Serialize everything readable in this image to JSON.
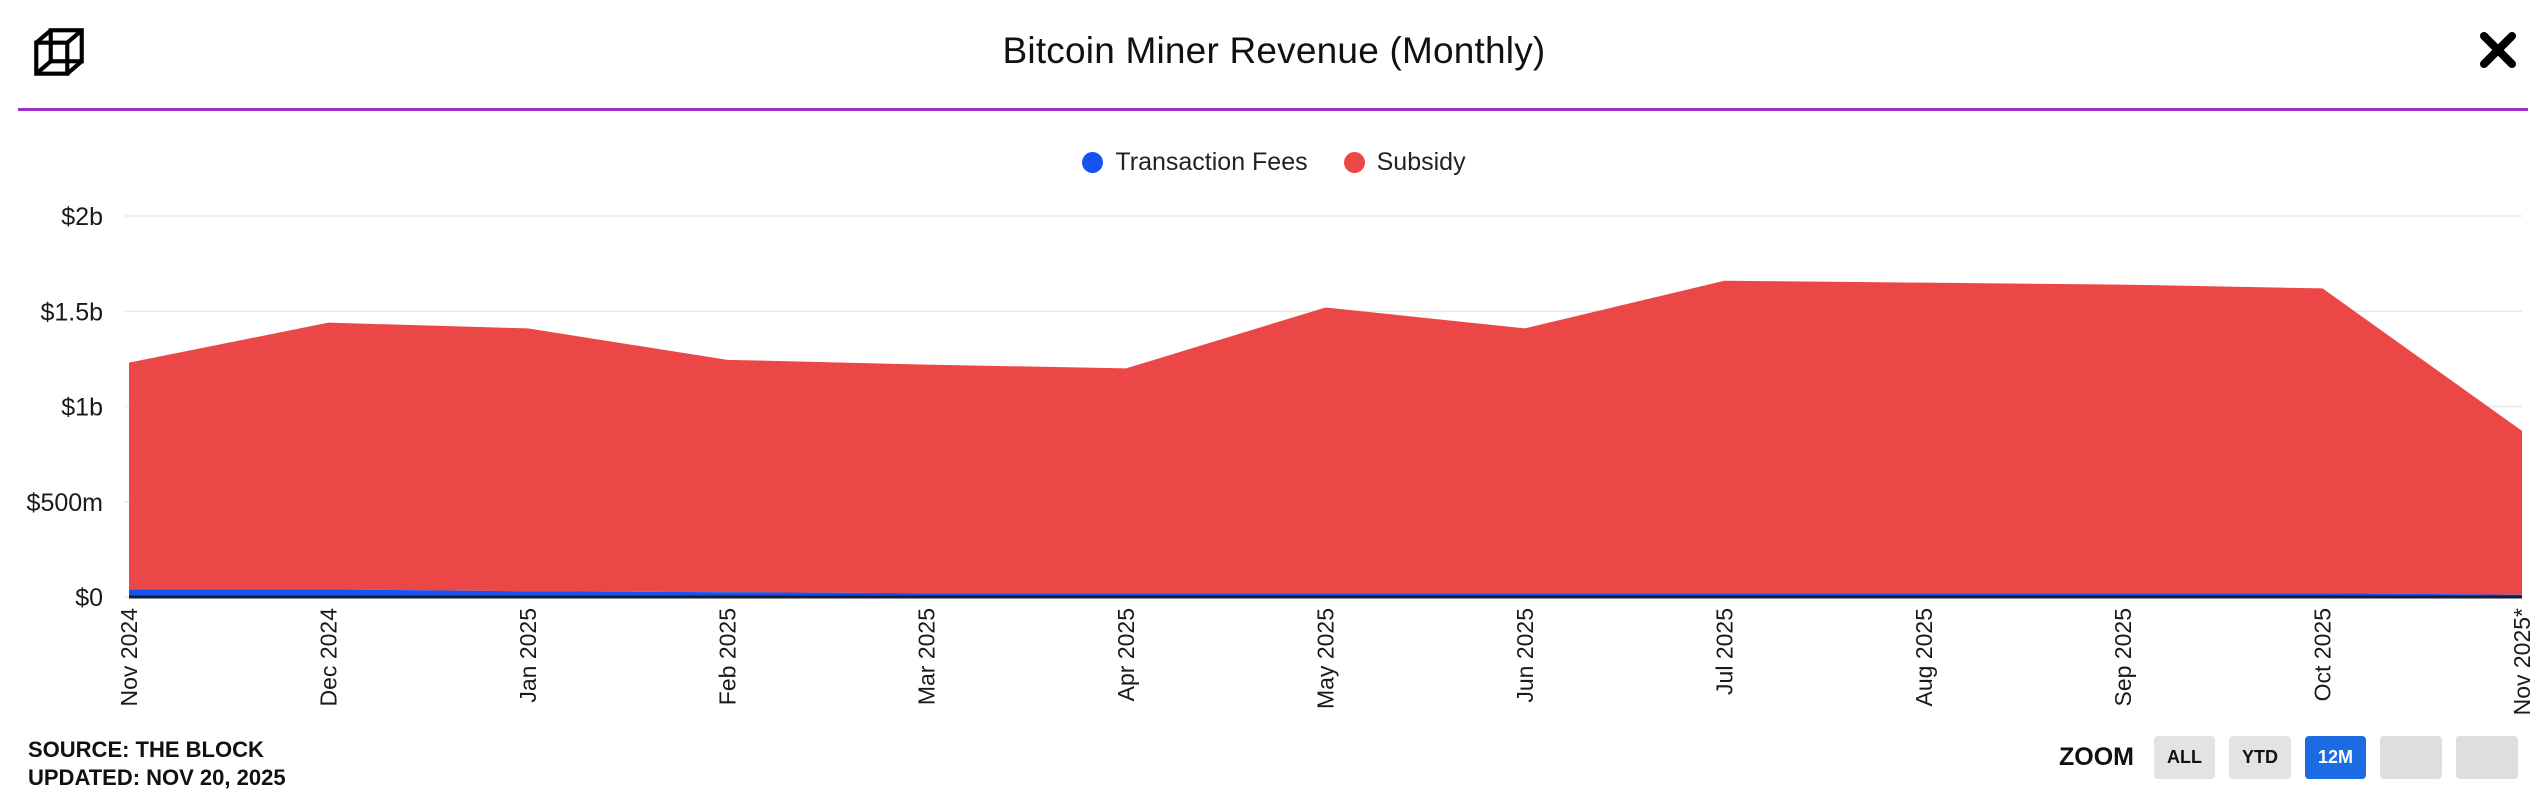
{
  "header": {
    "title": "Bitcoin Miner Revenue (Monthly)"
  },
  "legend": [
    {
      "label": "Transaction Fees",
      "color": "#1652F0"
    },
    {
      "label": "Subsidy",
      "color": "#EC4747"
    }
  ],
  "chart_data": {
    "type": "area",
    "stacked": true,
    "title": "Bitcoin Miner Revenue (Monthly)",
    "categories": [
      "Nov 2024",
      "Dec 2024",
      "Jan 2025",
      "Feb 2025",
      "Mar 2025",
      "Apr 2025",
      "May 2025",
      "Jun 2025",
      "Jul 2025",
      "Aug 2025",
      "Sep 2025",
      "Oct 2025",
      "Nov 2025*"
    ],
    "series": [
      {
        "name": "Transaction Fees",
        "color": "#1652F0",
        "values_billions": [
          0.04,
          0.04,
          0.03,
          0.025,
          0.02,
          0.02,
          0.02,
          0.02,
          0.02,
          0.02,
          0.02,
          0.02,
          0.012
        ]
      },
      {
        "name": "Subsidy",
        "color": "#EC4747",
        "values_billions": [
          1.19,
          1.4,
          1.38,
          1.22,
          1.2,
          1.18,
          1.5,
          1.39,
          1.64,
          1.63,
          1.62,
          1.6,
          0.86
        ]
      }
    ],
    "totals_billions": [
      1.23,
      1.44,
      1.41,
      1.245,
      1.22,
      1.2,
      1.52,
      1.41,
      1.66,
      1.65,
      1.64,
      1.62,
      0.872
    ],
    "ylabel_ticks": [
      "$0",
      "$500m",
      "$1b",
      "$1.5b",
      "$2b"
    ],
    "ytick_values_billions": [
      0,
      0.5,
      1,
      1.5,
      2
    ],
    "ylim_billions": [
      0,
      2
    ],
    "grid": true,
    "legend_position": "top",
    "xlabel": "",
    "ylabel": ""
  },
  "footer": {
    "source_line1": "SOURCE: THE BLOCK",
    "source_line2": "UPDATED: NOV 20, 2025",
    "zoom_label": "ZOOM",
    "zoom_buttons": [
      {
        "label": "ALL",
        "active": false
      },
      {
        "label": "YTD",
        "active": false
      },
      {
        "label": "12M",
        "active": true
      },
      {
        "label": "",
        "active": false
      },
      {
        "label": "",
        "active": false
      }
    ]
  },
  "colors": {
    "divider": "#A02FC8",
    "active_button": "#1B6BE2",
    "axis_line": "#131C3A"
  }
}
